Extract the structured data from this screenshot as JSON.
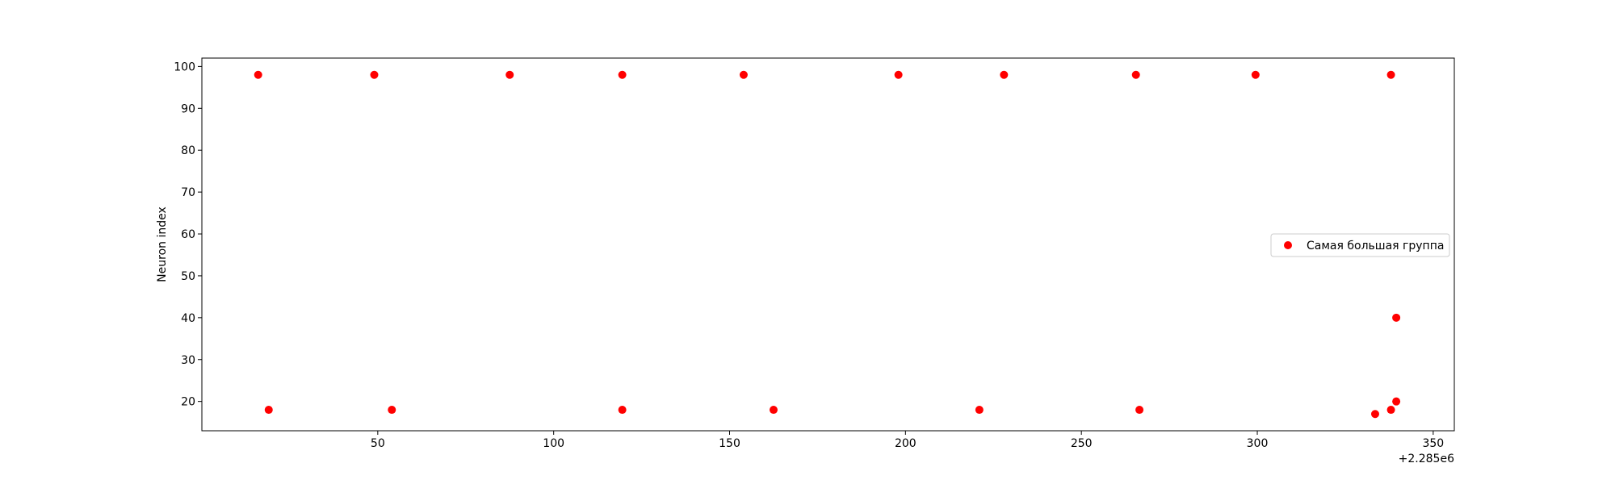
{
  "chart_data": {
    "type": "scatter",
    "title": "",
    "xlabel": "",
    "ylabel": "Neuron index",
    "x_offset_label": "+2.285e6",
    "xlim": [
      2285000,
      2285356
    ],
    "ylim": [
      13,
      102
    ],
    "xticks": [
      2285050,
      2285100,
      2285150,
      2285200,
      2285250,
      2285300,
      2285350
    ],
    "xtick_labels": [
      "50",
      "100",
      "150",
      "200",
      "250",
      "300",
      "350"
    ],
    "yticks": [
      20,
      30,
      40,
      50,
      60,
      70,
      80,
      90,
      100
    ],
    "ytick_labels": [
      "20",
      "30",
      "40",
      "50",
      "60",
      "70",
      "80",
      "90",
      "100"
    ],
    "grid": false,
    "legend_position": "center-right",
    "series": [
      {
        "name": "Самая большая группа",
        "color": "#ff0000",
        "points": [
          {
            "x": 2285016,
            "y": 98
          },
          {
            "x": 2285049,
            "y": 98
          },
          {
            "x": 2285087.5,
            "y": 98
          },
          {
            "x": 2285119.5,
            "y": 98
          },
          {
            "x": 2285154,
            "y": 98
          },
          {
            "x": 2285198,
            "y": 98
          },
          {
            "x": 2285228,
            "y": 98
          },
          {
            "x": 2285265.5,
            "y": 98
          },
          {
            "x": 2285299.5,
            "y": 98
          },
          {
            "x": 2285338,
            "y": 98
          },
          {
            "x": 2285019,
            "y": 18
          },
          {
            "x": 2285054,
            "y": 18
          },
          {
            "x": 2285119.5,
            "y": 18
          },
          {
            "x": 2285162.5,
            "y": 18
          },
          {
            "x": 2285221,
            "y": 18
          },
          {
            "x": 2285266.5,
            "y": 18
          },
          {
            "x": 2285333.5,
            "y": 17
          },
          {
            "x": 2285338,
            "y": 18
          },
          {
            "x": 2285339.5,
            "y": 20
          },
          {
            "x": 2285339.5,
            "y": 40
          }
        ]
      }
    ]
  }
}
